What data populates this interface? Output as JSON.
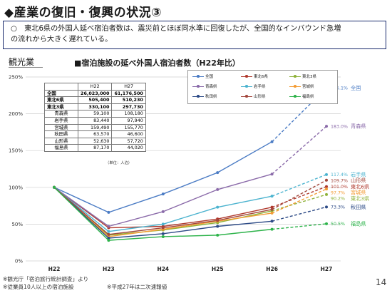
{
  "title": "◆産業の復旧・復興の状況③",
  "summary_line1": "○　東北6県の外国人延べ宿泊者数は、震災前とほぼ同水準に回復したが、全国的なインバウンド急増",
  "summary_line2": "の流れから大きく遅れている。",
  "section_label": "観光業",
  "chart_heading": "■宿泊施設の延べ外国人宿泊者数（H22年比）",
  "table": {
    "headers": [
      "",
      "H22",
      "H27"
    ],
    "rows": [
      {
        "name": "全国",
        "h22": "26,023,000",
        "h27": "61,176,500",
        "bold": true
      },
      {
        "name": "東北6県",
        "h22": "505,400",
        "h27": "510,230",
        "bold": true
      },
      {
        "name": "東北3県",
        "h22": "330,100",
        "h27": "297,730",
        "bold": true
      },
      {
        "name": "青森県",
        "h22": "59,100",
        "h27": "108,180",
        "bold": false
      },
      {
        "name": "岩手県",
        "h22": "83,440",
        "h27": "97,940",
        "bold": false
      },
      {
        "name": "宮城県",
        "h22": "159,490",
        "h27": "155,770",
        "bold": false
      },
      {
        "name": "秋田県",
        "h22": "63,570",
        "h27": "46,600",
        "bold": false
      },
      {
        "name": "山形県",
        "h22": "52,630",
        "h27": "57,720",
        "bold": false
      },
      {
        "name": "福島県",
        "h22": "87,170",
        "h27": "44,020",
        "bold": false
      }
    ],
    "unit_note": "（単位：人泊）"
  },
  "footnotes": {
    "source": "※観光庁「宿泊旅行統計調査」より",
    "scope": "※従業員10人以上の宿泊施設",
    "prelim": "※平成27年は二次速報値"
  },
  "page_number": "14",
  "chart_data": {
    "type": "line",
    "categories": [
      "H22",
      "H23",
      "H24",
      "H25",
      "H26",
      "H27"
    ],
    "ylim": [
      0,
      250
    ],
    "yticks": [
      0,
      50,
      100,
      150,
      200,
      250
    ],
    "ytick_labels": [
      "0%",
      "50%",
      "100%",
      "150%",
      "200%",
      "250%"
    ],
    "grid": true,
    "legend_position": "top-right",
    "note": "last segment (H26 to H27) drawn dashed",
    "series": [
      {
        "name": "全国",
        "color": "#4a7bc4",
        "values": [
          100,
          66,
          91,
          120,
          162,
          235.1
        ],
        "end_label": "235.1%",
        "side_label": "全国"
      },
      {
        "name": "東北6県",
        "color": "#b03a2e",
        "values": [
          100,
          45,
          47,
          57,
          73,
          101.0
        ],
        "end_label": "101.0%",
        "side_label": "東北6県"
      },
      {
        "name": "東北3県",
        "color": "#8fb23a",
        "values": [
          100,
          35,
          42,
          52,
          68,
          90.2
        ],
        "end_label": "90.2%",
        "side_label": "東北3県"
      },
      {
        "name": "青森県",
        "color": "#8a6aa9",
        "values": [
          100,
          47,
          67,
          97,
          118,
          183.0
        ],
        "end_label": "183.0%",
        "side_label": "青森県"
      },
      {
        "name": "岩手県",
        "color": "#4bb3cf",
        "values": [
          100,
          40,
          50,
          73,
          88,
          117.4
        ],
        "end_label": "117.4%",
        "side_label": "岩手県"
      },
      {
        "name": "宮城県",
        "color": "#f39c34",
        "values": [
          100,
          33,
          43,
          54,
          65,
          97.7
        ],
        "end_label": "97.7%",
        "side_label": "宮城県"
      },
      {
        "name": "秋田県",
        "color": "#2c4a86",
        "values": [
          100,
          31,
          37,
          47,
          54,
          73.3
        ],
        "end_label": "73.3%",
        "side_label": "秋田県"
      },
      {
        "name": "山形県",
        "color": "#a2473c",
        "values": [
          100,
          36,
          45,
          55,
          70,
          109.7
        ],
        "end_label": "109.7%",
        "side_label": "山形県"
      },
      {
        "name": "福島県",
        "color": "#2eb34b",
        "values": [
          100,
          28,
          33,
          35,
          43,
          50.5
        ],
        "end_label": "50.5%",
        "side_label": "福島県"
      }
    ]
  }
}
